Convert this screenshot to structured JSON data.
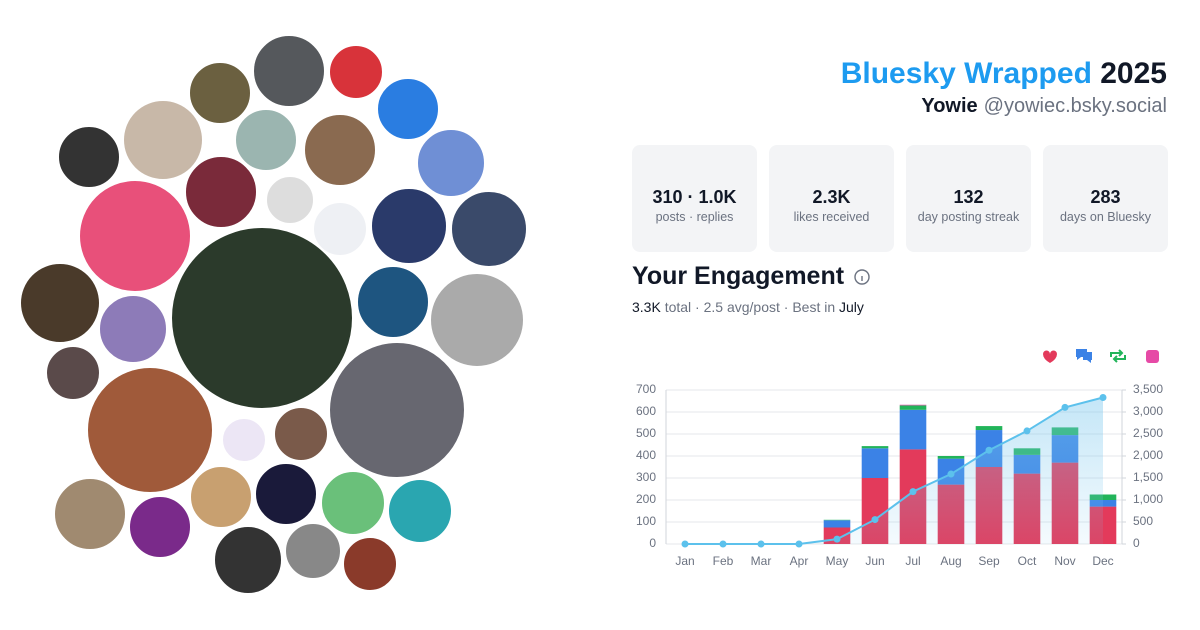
{
  "header": {
    "title_brand": "Bluesky Wrapped",
    "title_year": "2025",
    "display_name": "Yowie",
    "handle": "@yowiec.bsky.social"
  },
  "stats": [
    {
      "value": "310 · 1.0K",
      "label": "posts · replies"
    },
    {
      "value": "2.3K",
      "label": "likes received"
    },
    {
      "value": "132",
      "label": "day posting streak"
    },
    {
      "value": "283",
      "label": "days on Bluesky"
    }
  ],
  "engagement": {
    "title": "Your Engagement",
    "summary_total": "3.3K",
    "summary_middle": "total · 2.5 avg/post · Best in",
    "summary_best": "July"
  },
  "chart_data": {
    "type": "bar",
    "categories": [
      "Jan",
      "Feb",
      "Mar",
      "Apr",
      "May",
      "Jun",
      "Jul",
      "Aug",
      "Sep",
      "Oct",
      "Nov",
      "Dec"
    ],
    "series": [
      {
        "color": "#e33a5b",
        "values": [
          0,
          0,
          0,
          0,
          75,
          300,
          430,
          270,
          350,
          320,
          370,
          170
        ]
      },
      {
        "color": "#3b82e6",
        "values": [
          0,
          0,
          0,
          0,
          33,
          135,
          180,
          118,
          168,
          85,
          125,
          30
        ]
      },
      {
        "color": "#22b45a",
        "values": [
          0,
          0,
          0,
          0,
          2,
          10,
          20,
          12,
          18,
          30,
          35,
          25
        ]
      },
      {
        "color": "#e64aa6",
        "values": [
          0,
          0,
          0,
          0,
          0,
          0,
          3,
          0,
          0,
          0,
          0,
          0
        ]
      },
      {
        "type": "line",
        "axis": "y2",
        "color": "#5cc1ec",
        "values": [
          0,
          0,
          0,
          0,
          110,
          555,
          1190,
          1590,
          2130,
          2570,
          3105,
          3330
        ]
      }
    ],
    "ylim": [
      0,
      700
    ],
    "yticks": [
      0,
      100,
      200,
      300,
      400,
      500,
      600,
      700
    ],
    "y2lim": [
      0,
      3500
    ],
    "y2ticks": [
      0,
      500,
      {
        "value": 1000,
        "label": "1,000"
      },
      {
        "value": 1500,
        "label": "1,500"
      },
      {
        "value": 2000,
        "label": "2,000"
      },
      {
        "value": 2500,
        "label": "2,500"
      },
      {
        "value": 3000,
        "label": "3,000"
      },
      {
        "value": 3500,
        "label": "3,500"
      }
    ],
    "grid": true
  }
}
